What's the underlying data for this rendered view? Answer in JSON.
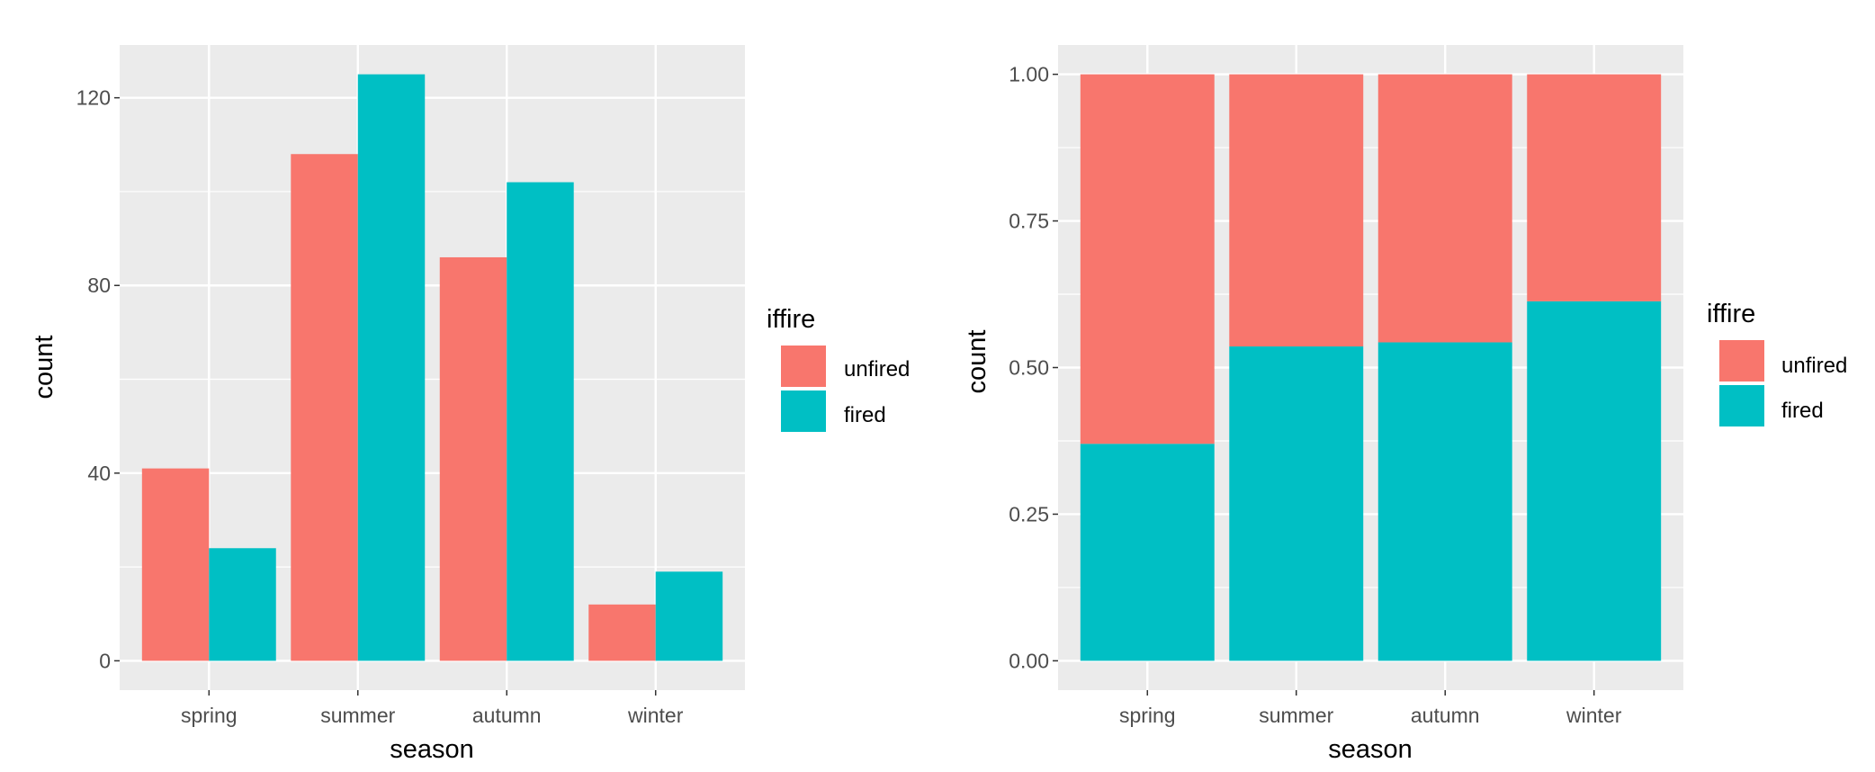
{
  "chart_data": [
    {
      "type": "bar",
      "barmode": "dodge",
      "categories": [
        "spring",
        "summer",
        "autumn",
        "winter"
      ],
      "series": [
        {
          "name": "unfired",
          "color": "#F8766D",
          "values": [
            41,
            108,
            86,
            12
          ]
        },
        {
          "name": "fired",
          "color": "#00BFC4",
          "values": [
            24,
            125,
            102,
            19
          ]
        }
      ],
      "xlabel": "season",
      "ylabel": "count",
      "ylim": [
        -6.25,
        131.25
      ],
      "yticks": [
        0,
        40,
        80,
        120
      ],
      "ytick_labels": [
        "0",
        "40",
        "80",
        "120"
      ],
      "legend": {
        "title": "iffire",
        "position": "right",
        "entries": [
          "unfired",
          "fired"
        ]
      },
      "grid": true
    },
    {
      "type": "bar",
      "barmode": "fill",
      "categories": [
        "spring",
        "summer",
        "autumn",
        "winter"
      ],
      "series": [
        {
          "name": "unfired",
          "color": "#F8766D",
          "values": [
            0.63,
            0.464,
            0.457,
            0.387
          ]
        },
        {
          "name": "fired",
          "color": "#00BFC4",
          "values": [
            0.37,
            0.536,
            0.543,
            0.613
          ]
        }
      ],
      "xlabel": "season",
      "ylabel": "count",
      "ylim": [
        -0.05,
        1.05
      ],
      "yticks": [
        0,
        0.25,
        0.5,
        0.75,
        1
      ],
      "ytick_labels": [
        "0.00",
        "0.25",
        "0.50",
        "0.75",
        "1.00"
      ],
      "legend": {
        "title": "iffire",
        "position": "right",
        "entries": [
          "unfired",
          "fired"
        ]
      },
      "grid": true
    }
  ]
}
